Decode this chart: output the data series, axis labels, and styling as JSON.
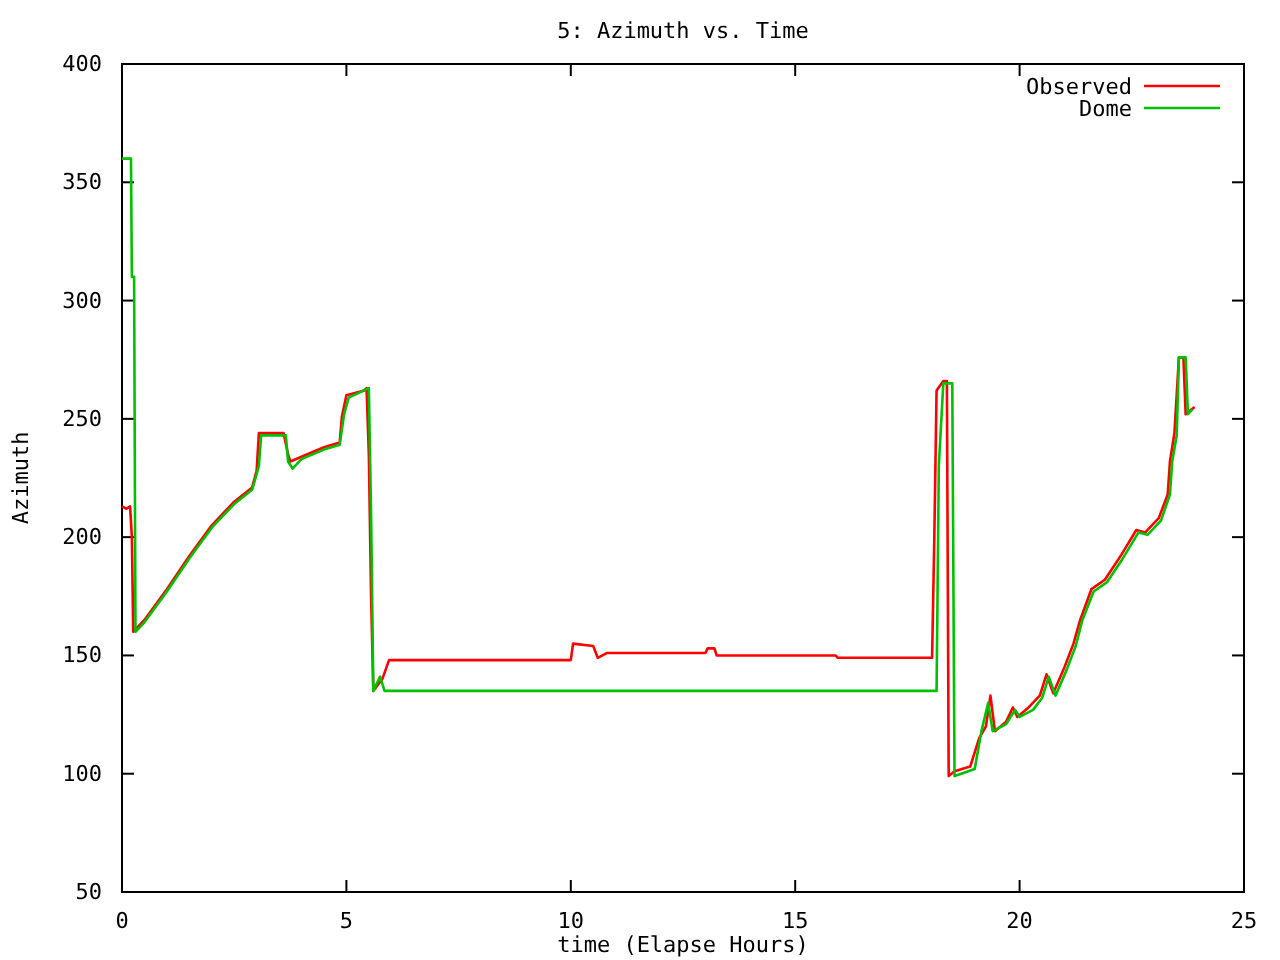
{
  "chart_data": {
    "type": "line",
    "title": "5: Azimuth vs. Time",
    "xlabel": "time (Elapse Hours)",
    "ylabel": "Azimuth",
    "xlim": [
      0,
      25
    ],
    "xticks": [
      0,
      5,
      10,
      15,
      20,
      25
    ],
    "ylim": [
      50,
      400
    ],
    "yticks": [
      50,
      100,
      150,
      200,
      250,
      300,
      350,
      400
    ],
    "grid": false,
    "legend": "top right",
    "marker": "none",
    "line_style": "solid",
    "series": [
      {
        "name": "Observed",
        "color": "#ff0000",
        "x": [
          0,
          0.1,
          0.18,
          0.22,
          0.25,
          0.5,
          1.0,
          1.5,
          2.0,
          2.5,
          2.9,
          3.0,
          3.05,
          3.6,
          3.7,
          3.75,
          4.0,
          4.5,
          4.85,
          4.9,
          5.0,
          5.4,
          5.45,
          5.5,
          5.55,
          5.6,
          5.8,
          5.95,
          10.0,
          10.05,
          10.5,
          10.6,
          10.8,
          13.0,
          13.05,
          13.2,
          13.25,
          15.9,
          15.95,
          18.05,
          18.1,
          18.15,
          18.3,
          18.38,
          18.42,
          18.55,
          18.9,
          19.1,
          19.25,
          19.35,
          19.45,
          19.7,
          19.85,
          19.95,
          20.2,
          20.45,
          20.6,
          20.75,
          21.0,
          21.2,
          21.35,
          21.6,
          21.9,
          22.25,
          22.6,
          22.8,
          23.1,
          23.3,
          23.35,
          23.45,
          23.55,
          23.65,
          23.7,
          23.9
        ],
        "values": [
          213,
          212,
          213,
          200,
          160,
          165,
          178,
          192,
          205,
          215,
          221,
          228,
          244,
          244,
          235,
          232,
          234,
          238,
          240,
          251,
          260,
          262,
          263,
          235,
          175,
          135,
          140,
          148,
          148,
          155,
          154,
          149,
          151,
          151,
          153,
          153,
          150,
          150,
          149,
          149,
          200,
          262,
          266,
          266,
          99,
          101,
          103,
          115,
          120,
          133,
          118,
          122,
          128,
          124,
          128,
          133,
          142,
          134,
          145,
          155,
          165,
          178,
          182,
          192,
          203,
          202,
          208,
          218,
          232,
          244,
          276,
          276,
          252,
          255
        ]
      },
      {
        "name": "Dome",
        "color": "#00c000",
        "x": [
          0,
          0.2,
          0.22,
          0.27,
          0.3,
          0.5,
          1.0,
          1.5,
          2.0,
          2.5,
          2.9,
          3.05,
          3.1,
          3.65,
          3.7,
          3.8,
          4.0,
          4.5,
          4.85,
          4.95,
          5.05,
          5.5,
          5.55,
          5.6,
          5.75,
          5.85,
          18.15,
          18.2,
          18.3,
          18.5,
          18.55,
          18.7,
          19.0,
          19.15,
          19.3,
          19.4,
          19.7,
          19.9,
          20.0,
          20.3,
          20.5,
          20.65,
          20.8,
          21.05,
          21.25,
          21.4,
          21.65,
          21.95,
          22.3,
          22.65,
          22.85,
          23.15,
          23.35,
          23.4,
          23.5,
          23.55,
          23.7,
          23.75,
          23.85
        ],
        "values": [
          360,
          360,
          310,
          310,
          160,
          164,
          177,
          191,
          204,
          214,
          220,
          230,
          243,
          243,
          232,
          229,
          233,
          237,
          239,
          252,
          259,
          263,
          210,
          135,
          141,
          135,
          135,
          230,
          265,
          265,
          99,
          100,
          102,
          118,
          130,
          118,
          121,
          127,
          124,
          127,
          132,
          141,
          133,
          144,
          154,
          165,
          177,
          181,
          191,
          202,
          201,
          207,
          218,
          232,
          243,
          276,
          276,
          252,
          254
        ]
      }
    ]
  }
}
